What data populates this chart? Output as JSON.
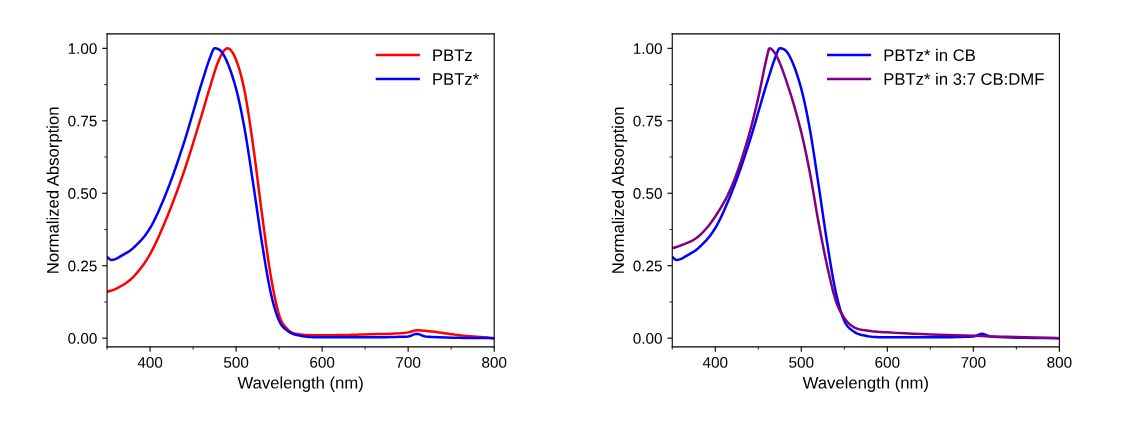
{
  "chart_data": [
    {
      "type": "line",
      "xlabel": "Wavelength (nm)",
      "ylabel": "Normalized Absorption",
      "xlim": [
        350,
        800
      ],
      "xticks": [
        400,
        500,
        600,
        700,
        800
      ],
      "ylim": [
        -0.03,
        1.05
      ],
      "yticks": [
        {
          "value": 0,
          "label": "0.00"
        },
        {
          "value": 0.25,
          "label": "0.25"
        },
        {
          "value": 0.5,
          "label": "0.50"
        },
        {
          "value": 0.75,
          "label": "0.75"
        },
        {
          "value": 1,
          "label": "1.00"
        }
      ],
      "grid": false,
      "legend": "top right",
      "marker": "none",
      "line_style": "solid",
      "series": [
        {
          "name": "PBTz",
          "color": "#ff0000",
          "x": [
            350,
            360,
            380,
            400,
            420,
            440,
            460,
            470,
            480,
            490,
            500,
            510,
            520,
            530,
            540,
            550,
            560,
            570,
            600,
            650,
            700,
            710,
            730,
            760,
            800
          ],
          "values": [
            0.16,
            0.17,
            0.21,
            0.29,
            0.42,
            0.58,
            0.77,
            0.87,
            0.96,
            1.0,
            0.96,
            0.85,
            0.66,
            0.43,
            0.22,
            0.08,
            0.03,
            0.015,
            0.01,
            0.013,
            0.02,
            0.027,
            0.022,
            0.01,
            0.0
          ]
        },
        {
          "name": "PBTz*",
          "color": "#0000ff",
          "x": [
            350,
            355,
            370,
            380,
            400,
            420,
            440,
            460,
            470,
            475,
            485,
            500,
            510,
            520,
            530,
            540,
            550,
            560,
            575,
            600,
            650,
            700,
            710,
            720,
            800
          ],
          "values": [
            0.28,
            0.27,
            0.29,
            0.31,
            0.38,
            0.51,
            0.68,
            0.88,
            0.97,
            1.0,
            0.98,
            0.86,
            0.72,
            0.53,
            0.33,
            0.16,
            0.06,
            0.025,
            0.008,
            0.003,
            0.003,
            0.006,
            0.015,
            0.006,
            0.0
          ]
        }
      ]
    },
    {
      "type": "line",
      "xlabel": "Wavelength (nm)",
      "ylabel": "Normalized Absorption",
      "xlim": [
        350,
        800
      ],
      "xticks": [
        400,
        500,
        600,
        700,
        800
      ],
      "ylim": [
        -0.03,
        1.05
      ],
      "yticks": [
        {
          "value": 0,
          "label": "0.00"
        },
        {
          "value": 0.25,
          "label": "0.25"
        },
        {
          "value": 0.5,
          "label": "0.50"
        },
        {
          "value": 0.75,
          "label": "0.75"
        },
        {
          "value": 1,
          "label": "1.00"
        }
      ],
      "grid": false,
      "legend": "top right",
      "marker": "none",
      "line_style": "solid",
      "series": [
        {
          "name": "PBTz* in CB",
          "color": "#0000ff",
          "x": [
            350,
            355,
            370,
            380,
            400,
            420,
            440,
            460,
            470,
            475,
            485,
            500,
            510,
            520,
            530,
            540,
            550,
            560,
            575,
            600,
            650,
            700,
            710,
            720,
            800
          ],
          "values": [
            0.28,
            0.27,
            0.29,
            0.31,
            0.38,
            0.51,
            0.68,
            0.88,
            0.97,
            1.0,
            0.98,
            0.86,
            0.72,
            0.53,
            0.33,
            0.16,
            0.06,
            0.025,
            0.008,
            0.003,
            0.003,
            0.006,
            0.015,
            0.006,
            0.0
          ]
        },
        {
          "name": "PBTz* in 3:7 CB:DMF",
          "color": "#800080",
          "x": [
            350,
            360,
            380,
            400,
            420,
            440,
            450,
            460,
            463,
            470,
            480,
            500,
            510,
            520,
            530,
            540,
            550,
            560,
            580,
            600,
            700,
            800
          ],
          "values": [
            0.31,
            0.32,
            0.35,
            0.42,
            0.53,
            0.71,
            0.83,
            0.97,
            1.0,
            0.98,
            0.91,
            0.71,
            0.57,
            0.4,
            0.25,
            0.13,
            0.07,
            0.04,
            0.025,
            0.02,
            0.008,
            0.0
          ]
        }
      ]
    }
  ]
}
